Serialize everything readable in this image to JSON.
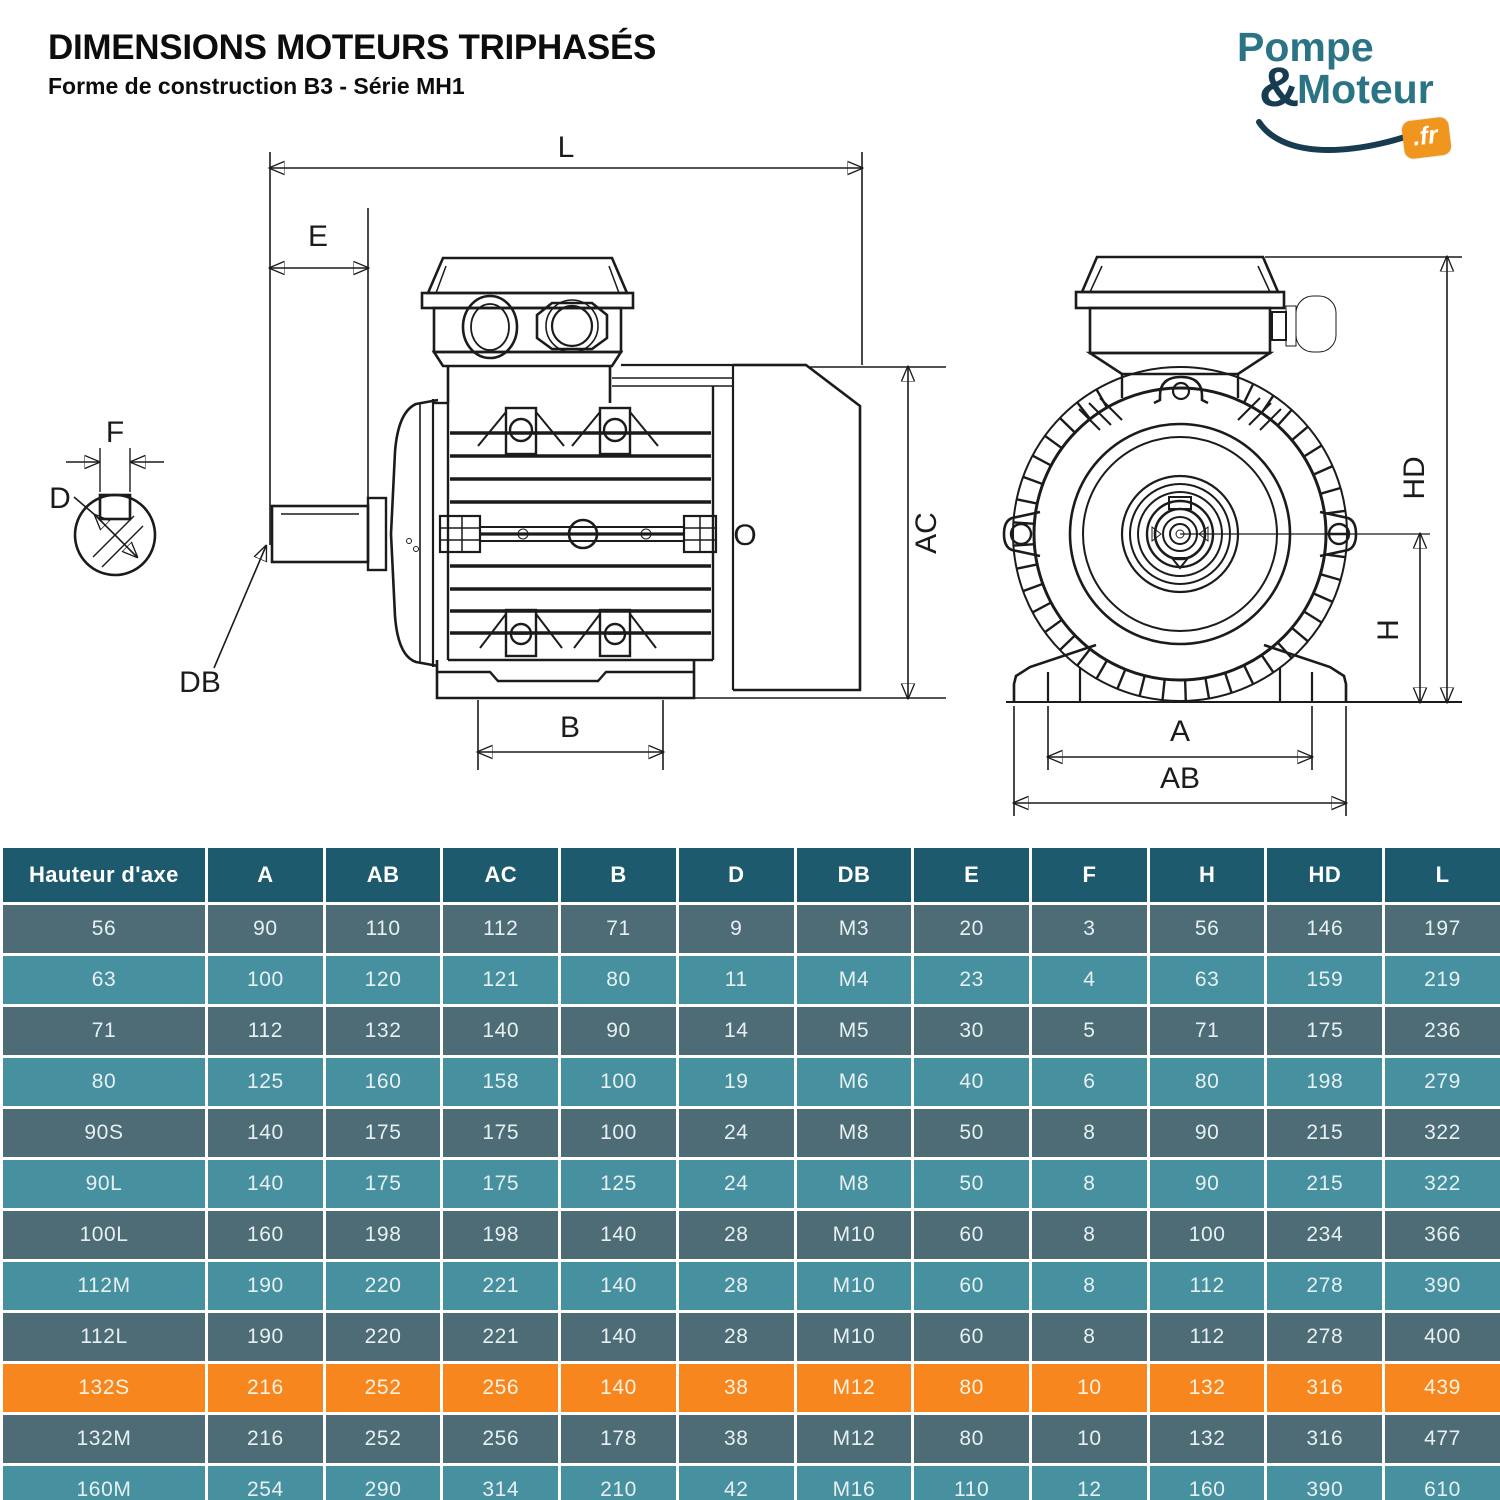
{
  "page": {
    "title": "DIMENSIONS MOTEURS TRIPHASÉS",
    "subtitle": "Forme de construction B3 - Série MH1"
  },
  "logo": {
    "pompe": "Pompe",
    "amp": "&",
    "moteur": "Moteur",
    "fr": ".fr"
  },
  "drawing": {
    "labels": {
      "L": "L",
      "E": "E",
      "F": "F",
      "D": "D",
      "DB": "DB",
      "B": "B",
      "AC": "AC",
      "O": "O",
      "HD": "HD",
      "H": "H",
      "A": "A",
      "AB": "AB"
    }
  },
  "table": {
    "columns": [
      "Hauteur d'axe",
      "A",
      "AB",
      "AC",
      "B",
      "D",
      "DB",
      "E",
      "F",
      "H",
      "HD",
      "L"
    ],
    "rows": [
      {
        "label": "56",
        "values": [
          "90",
          "110",
          "112",
          "71",
          "9",
          "M3",
          "20",
          "3",
          "56",
          "146",
          "197"
        ]
      },
      {
        "label": "63",
        "values": [
          "100",
          "120",
          "121",
          "80",
          "11",
          "M4",
          "23",
          "4",
          "63",
          "159",
          "219"
        ]
      },
      {
        "label": "71",
        "values": [
          "112",
          "132",
          "140",
          "90",
          "14",
          "M5",
          "30",
          "5",
          "71",
          "175",
          "236"
        ]
      },
      {
        "label": "80",
        "values": [
          "125",
          "160",
          "158",
          "100",
          "19",
          "M6",
          "40",
          "6",
          "80",
          "198",
          "279"
        ]
      },
      {
        "label": "90S",
        "values": [
          "140",
          "175",
          "175",
          "100",
          "24",
          "M8",
          "50",
          "8",
          "90",
          "215",
          "322"
        ]
      },
      {
        "label": "90L",
        "values": [
          "140",
          "175",
          "175",
          "125",
          "24",
          "M8",
          "50",
          "8",
          "90",
          "215",
          "322"
        ]
      },
      {
        "label": "100L",
        "values": [
          "160",
          "198",
          "198",
          "140",
          "28",
          "M10",
          "60",
          "8",
          "100",
          "234",
          "366"
        ]
      },
      {
        "label": "112M",
        "values": [
          "190",
          "220",
          "221",
          "140",
          "28",
          "M10",
          "60",
          "8",
          "112",
          "278",
          "390"
        ]
      },
      {
        "label": "112L",
        "values": [
          "190",
          "220",
          "221",
          "140",
          "28",
          "M10",
          "60",
          "8",
          "112",
          "278",
          "400"
        ]
      },
      {
        "label": "132S",
        "values": [
          "216",
          "252",
          "256",
          "140",
          "38",
          "M12",
          "80",
          "10",
          "132",
          "316",
          "439"
        ],
        "highlight": true
      },
      {
        "label": "132M",
        "values": [
          "216",
          "252",
          "256",
          "178",
          "38",
          "M12",
          "80",
          "10",
          "132",
          "316",
          "477"
        ]
      },
      {
        "label": "160M",
        "values": [
          "254",
          "290",
          "314",
          "210",
          "42",
          "M16",
          "110",
          "12",
          "160",
          "390",
          "610"
        ]
      }
    ]
  },
  "colors": {
    "header_bg": "#1d5a6d",
    "row_dark": "#4d6c76",
    "row_light": "#47909f",
    "row_highlight": "#f6861d",
    "logo_teal": "#2b7486",
    "logo_navy": "#173c52",
    "logo_orange": "#f0961e"
  }
}
